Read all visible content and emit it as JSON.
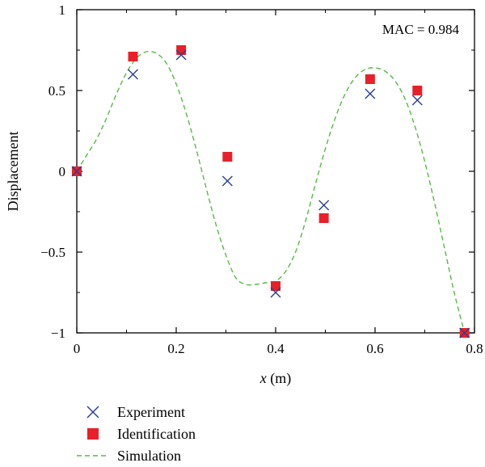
{
  "chart_data": {
    "type": "scatter",
    "xlabel_var": "x",
    "xlabel_unit": " (m)",
    "ylabel": "Displacement",
    "annotation": "MAC = 0.984",
    "xlim": [
      0,
      0.8
    ],
    "ylim": [
      -1,
      1
    ],
    "xticks": [
      0,
      0.2,
      0.4,
      0.6,
      0.8
    ],
    "xtick_labels": [
      "0",
      "0.2",
      "0.4",
      "0.6",
      "0.8"
    ],
    "yticks": [
      -1,
      -0.5,
      0,
      0.5,
      1
    ],
    "ytick_labels": [
      "−1",
      "−0.5",
      "0",
      "0.5",
      "1"
    ],
    "grid": false,
    "legend_position": "bottom-left outside",
    "series": [
      {
        "name": "Experiment",
        "marker": "x",
        "color": "#2b3f8f",
        "x": [
          0,
          0.113,
          0.21,
          0.303,
          0.4,
          0.497,
          0.59,
          0.685,
          0.78
        ],
        "y": [
          0,
          0.6,
          0.72,
          -0.06,
          -0.75,
          -0.21,
          0.48,
          0.44,
          -1.0
        ]
      },
      {
        "name": "Identification",
        "marker": "square",
        "color": "#e8202a",
        "x": [
          0,
          0.113,
          0.21,
          0.303,
          0.4,
          0.497,
          0.59,
          0.685,
          0.78
        ],
        "y": [
          0,
          0.71,
          0.75,
          0.09,
          -0.71,
          -0.29,
          0.57,
          0.5,
          -1.0
        ]
      },
      {
        "name": "Simulation",
        "marker": "dashed-line",
        "color": "#58b947",
        "x": [
          0,
          0.02,
          0.04,
          0.06,
          0.08,
          0.1,
          0.12,
          0.14,
          0.16,
          0.18,
          0.2,
          0.22,
          0.24,
          0.26,
          0.28,
          0.3,
          0.32,
          0.34,
          0.36,
          0.38,
          0.4,
          0.42,
          0.44,
          0.46,
          0.48,
          0.5,
          0.52,
          0.54,
          0.56,
          0.58,
          0.6,
          0.62,
          0.64,
          0.66,
          0.68,
          0.7,
          0.72,
          0.74,
          0.76,
          0.78
        ],
        "y": [
          0,
          0.1,
          0.2,
          0.33,
          0.48,
          0.61,
          0.7,
          0.74,
          0.73,
          0.67,
          0.54,
          0.36,
          0.14,
          -0.1,
          -0.33,
          -0.52,
          -0.66,
          -0.7,
          -0.7,
          -0.69,
          -0.68,
          -0.62,
          -0.5,
          -0.31,
          -0.08,
          0.14,
          0.33,
          0.48,
          0.58,
          0.63,
          0.64,
          0.62,
          0.56,
          0.45,
          0.28,
          0.06,
          -0.2,
          -0.48,
          -0.76,
          -1.0
        ]
      }
    ]
  }
}
